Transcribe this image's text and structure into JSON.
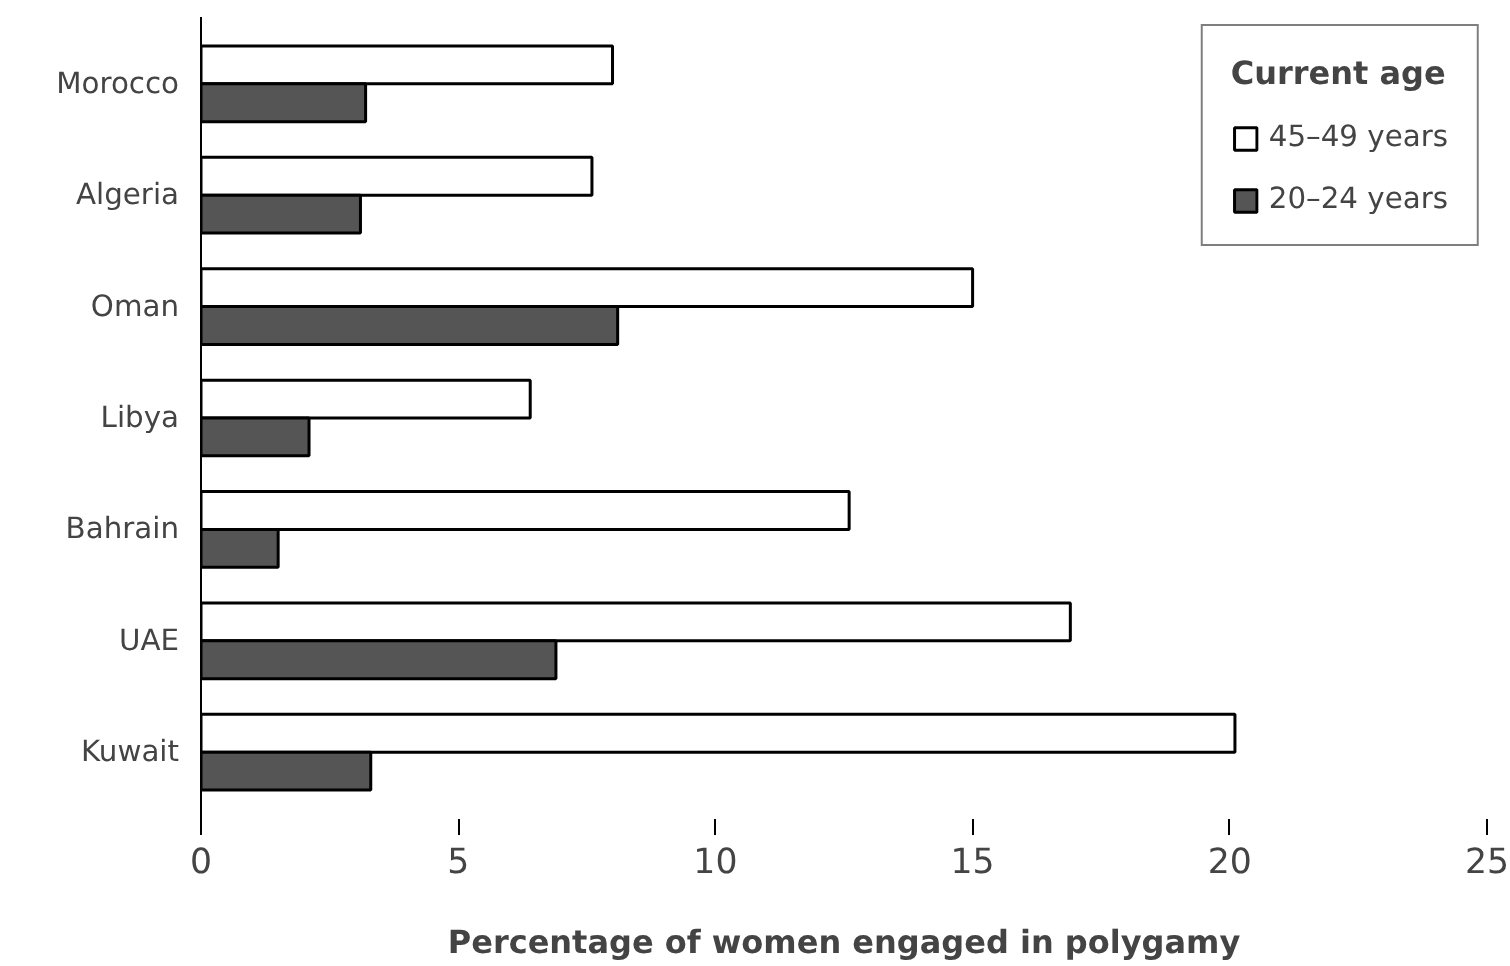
{
  "chart_data": {
    "type": "bar",
    "orientation": "horizontal",
    "xlabel": "Percentage of women engaged in polygamy",
    "legend_title": "Current age",
    "legend": "top right",
    "grid": false,
    "categories": [
      "Morocco",
      "Algeria",
      "Oman",
      "Libya",
      "Bahrain",
      "UAE",
      "Kuwait"
    ],
    "xlim": [
      0,
      25
    ],
    "xticks": [
      0,
      5,
      10,
      15,
      20,
      25
    ],
    "series": [
      {
        "name": "45–49 years",
        "color": "#ffffff",
        "values": [
          8.0,
          7.6,
          15.0,
          6.4,
          12.6,
          16.9,
          20.1
        ]
      },
      {
        "name": "20–24 years",
        "color": "#555555",
        "values": [
          3.2,
          3.1,
          8.1,
          2.1,
          1.5,
          6.9,
          3.3
        ]
      }
    ]
  }
}
